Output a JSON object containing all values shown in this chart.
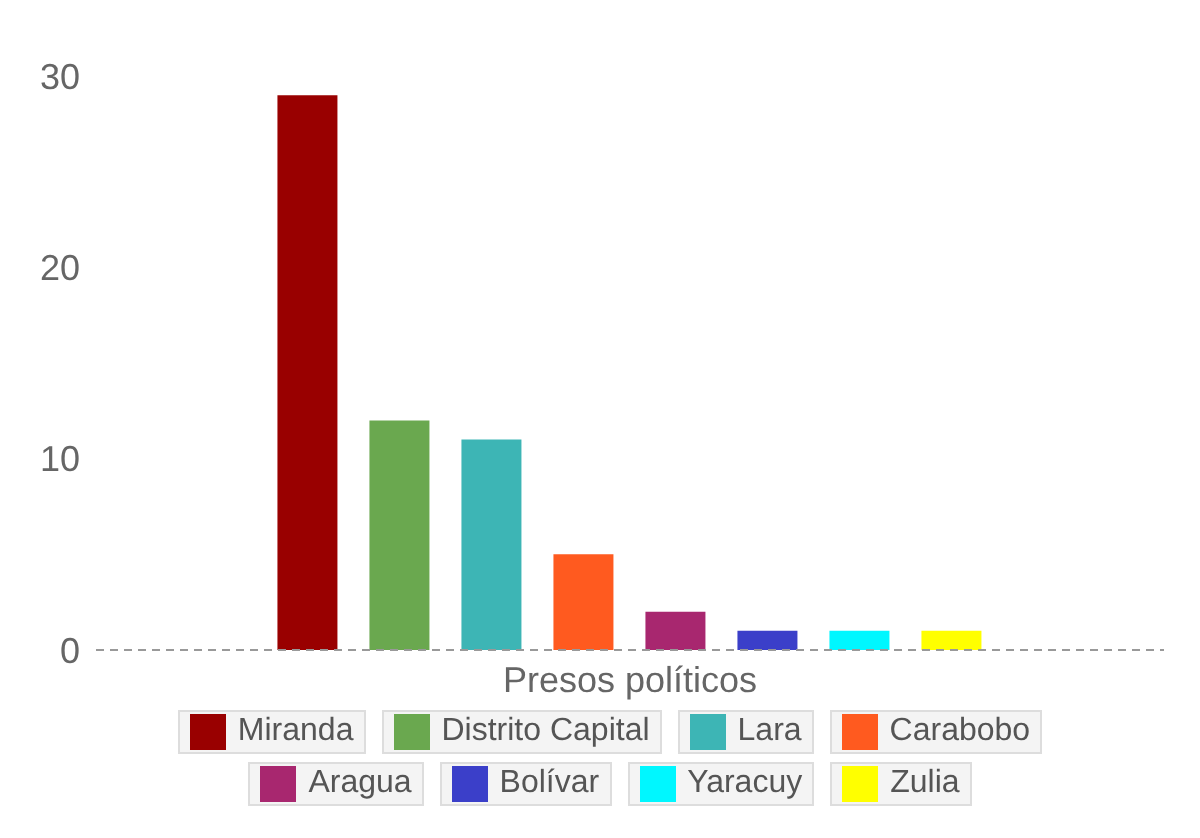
{
  "chart_data": {
    "type": "bar",
    "categories": [
      "Presos políticos"
    ],
    "ylim": [
      0,
      30
    ],
    "yticks": [
      0,
      10,
      20,
      30
    ],
    "grid": false,
    "legend": "bottom",
    "series": [
      {
        "name": "Miranda",
        "color": "#990000",
        "values": [
          29
        ]
      },
      {
        "name": "Distrito Capital",
        "color": "#6aa84f",
        "values": [
          12
        ]
      },
      {
        "name": "Lara",
        "color": "#3db5b5",
        "values": [
          11
        ]
      },
      {
        "name": "Carabobo",
        "color": "#ff5a1f",
        "values": [
          5
        ]
      },
      {
        "name": "Aragua",
        "color": "#a8276f",
        "values": [
          2
        ]
      },
      {
        "name": "Bolívar",
        "color": "#3b3fc9",
        "values": [
          1
        ]
      },
      {
        "name": "Yaracuy",
        "color": "#00f7ff",
        "values": [
          1
        ]
      },
      {
        "name": "Zulia",
        "color": "#ffff00",
        "values": [
          1
        ]
      }
    ]
  }
}
